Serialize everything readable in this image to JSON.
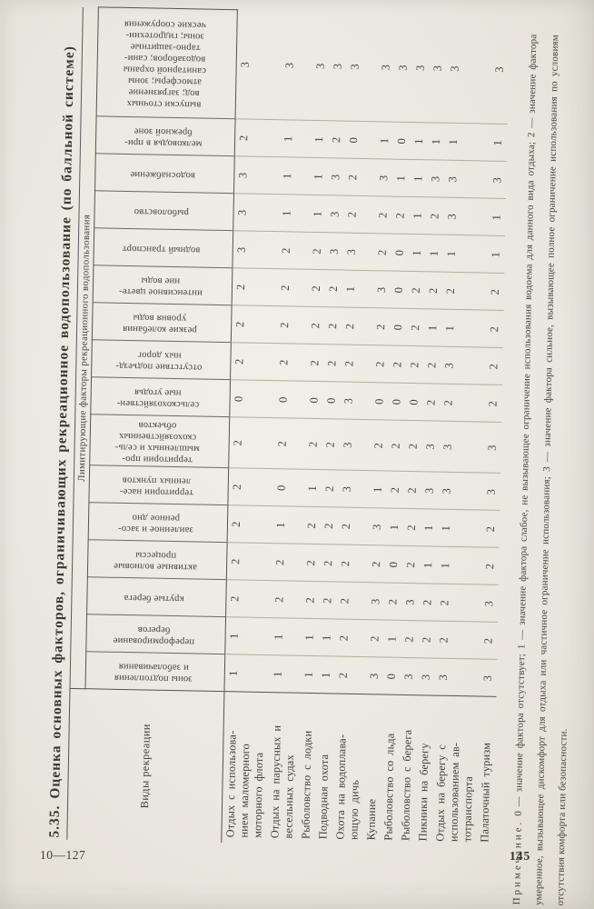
{
  "page": {
    "signature_mark": "10—127",
    "page_number": "145",
    "paper_color": "#ebe8e0",
    "ink_color": "#3f3c36",
    "rule_color": "#57534b"
  },
  "table": {
    "caption": "5.35. Оценка основных факторов, ограничивающих рекреационное водопользование (по балльной системе)",
    "row_header": "Виды рекреации",
    "column_group_header": "Лимитирующие факторы рекреационного водопользования",
    "factor_columns": [
      "зоны подтопления\nи заболачивания",
      "переформирование\nберегов",
      "крутые берега",
      "активные волновые\nпроцессы",
      "заиленное и засо-\nренное дно",
      "территории насе-\nленных пунктов",
      "территории про-\nмышленных и сель-\nскохозяйственных\nобъектов",
      "сельскохозяйствен-\nные угодья",
      "отсутствие подъезд-\nных дорог",
      "резкие колебания\nуровня воды",
      "интенсивное цвете-\nние воды",
      "водный транспорт",
      "рыболовство",
      "водоснабжение",
      "мелководья в при-\nбрежной зоне",
      "выпуски сточных\nвод; загрязнение\nатмосферы; зоны\nсанитарной охраны\nводозаборов; сани-\nтарно-защитные\nзоны; гидротехни-\nческие сооружения"
    ],
    "rows": [
      {
        "label": "Отдых с использова-\nнием маломерного\nмоторного флота",
        "values": [
          1,
          1,
          2,
          2,
          2,
          2,
          2,
          0,
          2,
          2,
          2,
          3,
          3,
          3,
          2,
          3
        ]
      },
      {
        "label": "Отдых на парусных и\nвесельных судах",
        "values": [
          1,
          1,
          2,
          2,
          1,
          0,
          2,
          0,
          2,
          2,
          2,
          2,
          1,
          1,
          1,
          3
        ]
      },
      {
        "label": "Рыболовство с лодки",
        "values": [
          1,
          1,
          2,
          2,
          2,
          1,
          2,
          0,
          2,
          2,
          2,
          2,
          1,
          1,
          1,
          3
        ]
      },
      {
        "label": "Подводная охота",
        "values": [
          1,
          1,
          2,
          2,
          2,
          2,
          2,
          0,
          2,
          2,
          2,
          3,
          3,
          3,
          2,
          3
        ]
      },
      {
        "label": "Охота на водоплава-\nющую дичь",
        "values": [
          2,
          2,
          2,
          2,
          2,
          3,
          3,
          3,
          2,
          2,
          1,
          3,
          2,
          2,
          0,
          3
        ]
      },
      {
        "label": "Купание",
        "values": [
          3,
          2,
          3,
          2,
          3,
          1,
          2,
          0,
          2,
          2,
          3,
          2,
          2,
          3,
          1,
          3
        ]
      },
      {
        "label": "Рыболовство со льда",
        "values": [
          0,
          1,
          2,
          0,
          1,
          2,
          2,
          0,
          2,
          0,
          0,
          0,
          2,
          1,
          0,
          3
        ]
      },
      {
        "label": "Рыболовство с берега",
        "values": [
          3,
          2,
          3,
          2,
          2,
          2,
          2,
          0,
          2,
          2,
          2,
          1,
          1,
          1,
          1,
          3
        ]
      },
      {
        "label": "Пикники на берегу",
        "values": [
          3,
          2,
          2,
          1,
          1,
          3,
          3,
          2,
          2,
          1,
          2,
          1,
          2,
          3,
          1,
          3
        ]
      },
      {
        "label": "Отдых на берегу с\nиспользованием ав-\nтотранспорта",
        "values": [
          3,
          2,
          2,
          1,
          1,
          3,
          3,
          2,
          3,
          1,
          2,
          1,
          3,
          3,
          1,
          3
        ]
      },
      {
        "label": "Палаточный туризм",
        "values": [
          3,
          2,
          3,
          2,
          2,
          3,
          3,
          2,
          2,
          2,
          2,
          1,
          1,
          3,
          1,
          3
        ]
      }
    ]
  },
  "footnote": {
    "label": "Примечание.",
    "text": "0 — значение фактора отсутствует; 1 — значение фактора слабое, не вызывающее ограничение использования водоема для данного вида отдыха; 2 — значение фактора умеренное, вызывающее дискомфорт для отдыха или частичное ограничение использования; 3 — значение фактора сильное, вызывающее полное ограничение использования по условиям отсутствия комфорта или безопасности."
  }
}
